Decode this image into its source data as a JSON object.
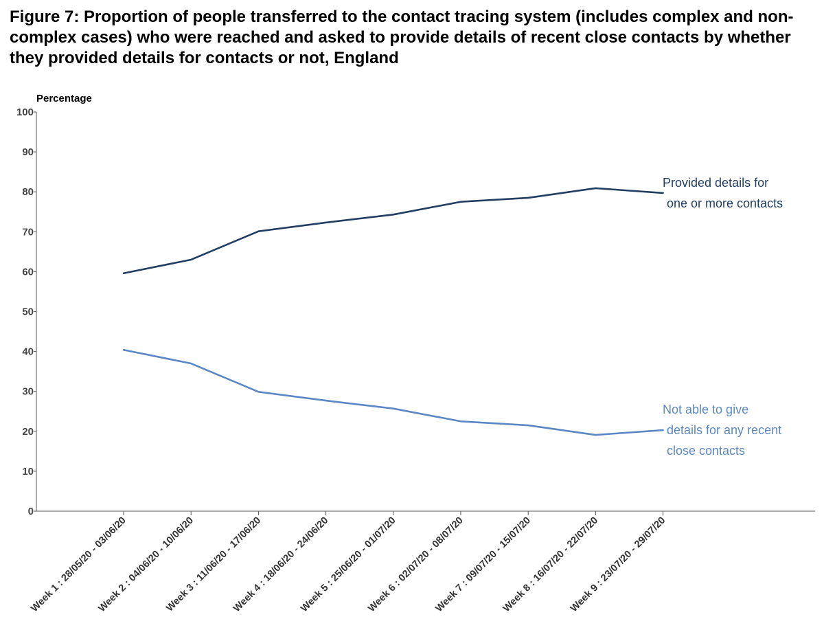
{
  "title": "Figure 7: Proportion of people transferred to the contact tracing system (includes complex and non-complex cases) who were reached and asked to provide details of recent close contacts by whether they provided details for contacts or not, England",
  "chart_data": {
    "type": "line",
    "title": "Figure 7: Proportion of people transferred to the contact tracing system (includes complex and non-complex cases) who were reached and asked to provide details of recent close contacts by whether they provided details for contacts or not, England",
    "ylabel": "Percentage",
    "xlabel": "",
    "ylim": [
      0,
      100
    ],
    "yticks": [
      0,
      10,
      20,
      30,
      40,
      50,
      60,
      70,
      80,
      90,
      100
    ],
    "grid": false,
    "categories": [
      "Week 1 : 28/05/20 - 03/06/20",
      "Week 2 : 04/06/20 - 10/06/20",
      "Week 3 : 11/06/20 - 17/06/20",
      "Week 4 : 18/06/20 - 24/06/20",
      "Week 5 : 25/06/20 - 01/07/20",
      "Week 6 : 02/07/20 - 08/07/20",
      "Week 7 : 09/07/20 - 15/07/20",
      "Week 8 : 16/07/20 - 22/07/20",
      "Week 9 : 23/07/20 - 29/07/20"
    ],
    "series": [
      {
        "name": "Provided details for one or more contacts",
        "label_lines": [
          "Provided details for",
          "one or more contacts"
        ],
        "color": "#233e63",
        "values": [
          59.6,
          63.0,
          70.1,
          72.3,
          74.3,
          77.5,
          78.5,
          80.9,
          79.7
        ]
      },
      {
        "name": "Not able to give details for any recent close contacts",
        "label_lines": [
          "Not able to give",
          "details for any recent",
          "close contacts"
        ],
        "color": "#5b88c4",
        "values": [
          40.4,
          37.0,
          29.9,
          27.7,
          25.7,
          22.5,
          21.5,
          19.1,
          20.3
        ]
      }
    ]
  }
}
